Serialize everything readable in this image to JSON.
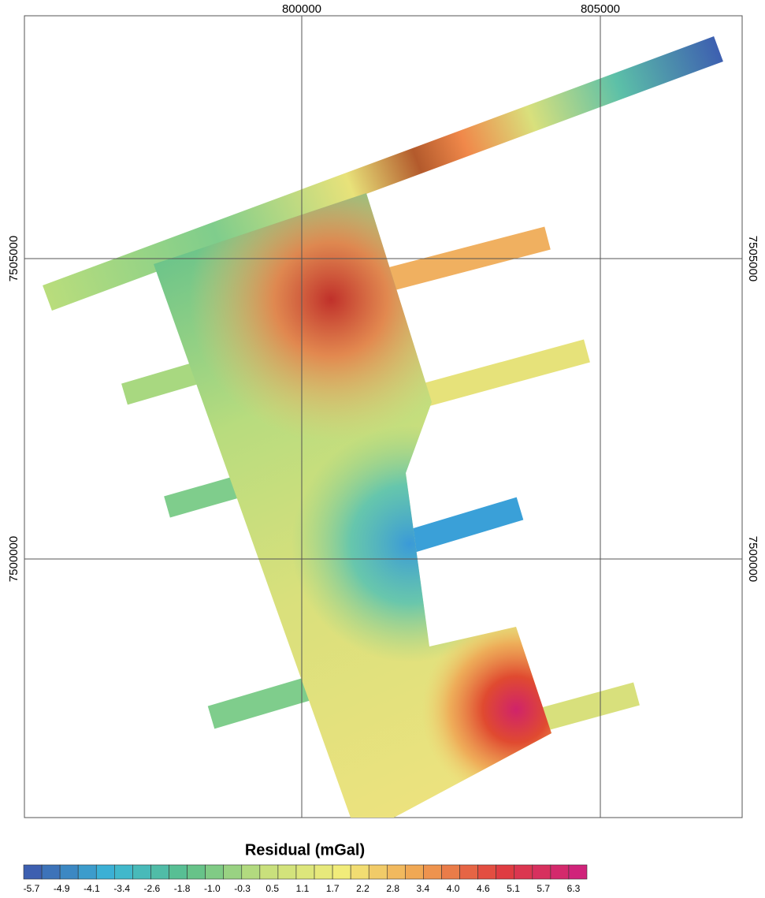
{
  "map": {
    "x_axis_labels": [
      "800000",
      "805000"
    ],
    "y_axis_labels": [
      "7505000",
      "7500000"
    ]
  },
  "colorbar": {
    "title": "Residual (mGal)",
    "labels": [
      "-5.7",
      "-4.9",
      "-4.1",
      "-3.4",
      "-2.6",
      "-1.8",
      "-1.0",
      "-0.3",
      "0.5",
      "1.1",
      "1.7",
      "2.2",
      "2.8",
      "3.4",
      "4.0",
      "4.6",
      "5.1",
      "5.7",
      "6.3"
    ]
  }
}
